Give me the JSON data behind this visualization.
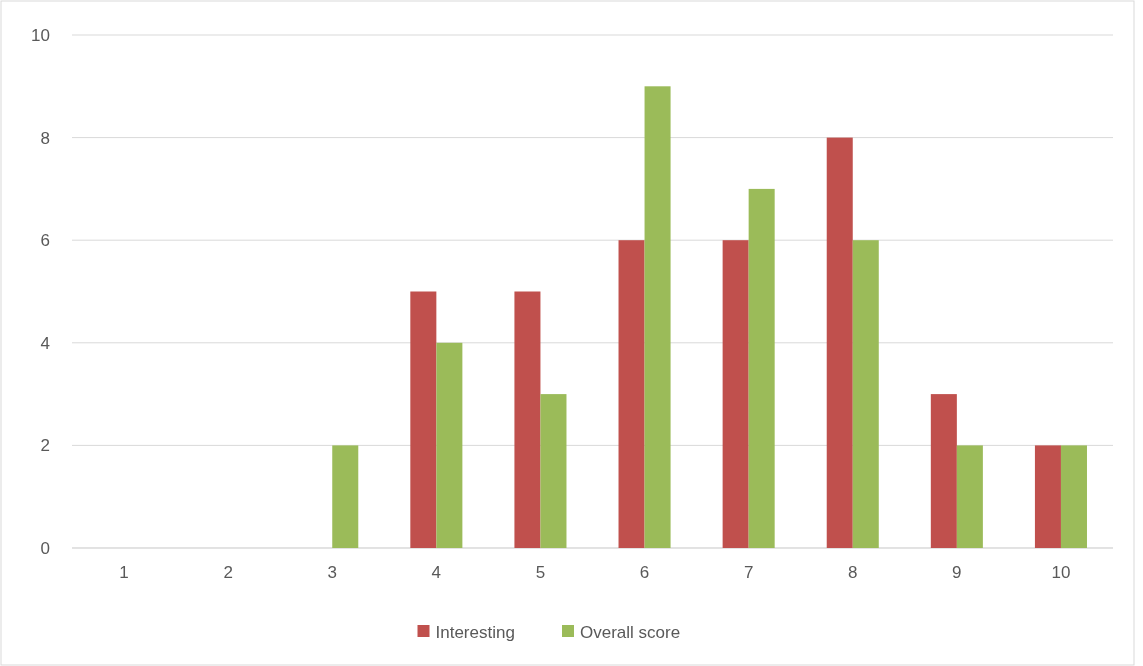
{
  "chart_data": {
    "type": "bar",
    "categories": [
      "1",
      "2",
      "3",
      "4",
      "5",
      "6",
      "7",
      "8",
      "9",
      "10"
    ],
    "series": [
      {
        "name": "Interesting",
        "color": "#c0504d",
        "values": [
          0,
          0,
          0,
          5,
          5,
          6,
          6,
          8,
          3,
          2
        ]
      },
      {
        "name": "Overall score",
        "color": "#9bbb59",
        "values": [
          0,
          0,
          2,
          4,
          3,
          9,
          7,
          6,
          2,
          2
        ]
      }
    ],
    "ylim": [
      0,
      10
    ],
    "yticks": [
      0,
      2,
      4,
      6,
      8,
      10
    ],
    "grid": "y",
    "legend": "bottom"
  }
}
